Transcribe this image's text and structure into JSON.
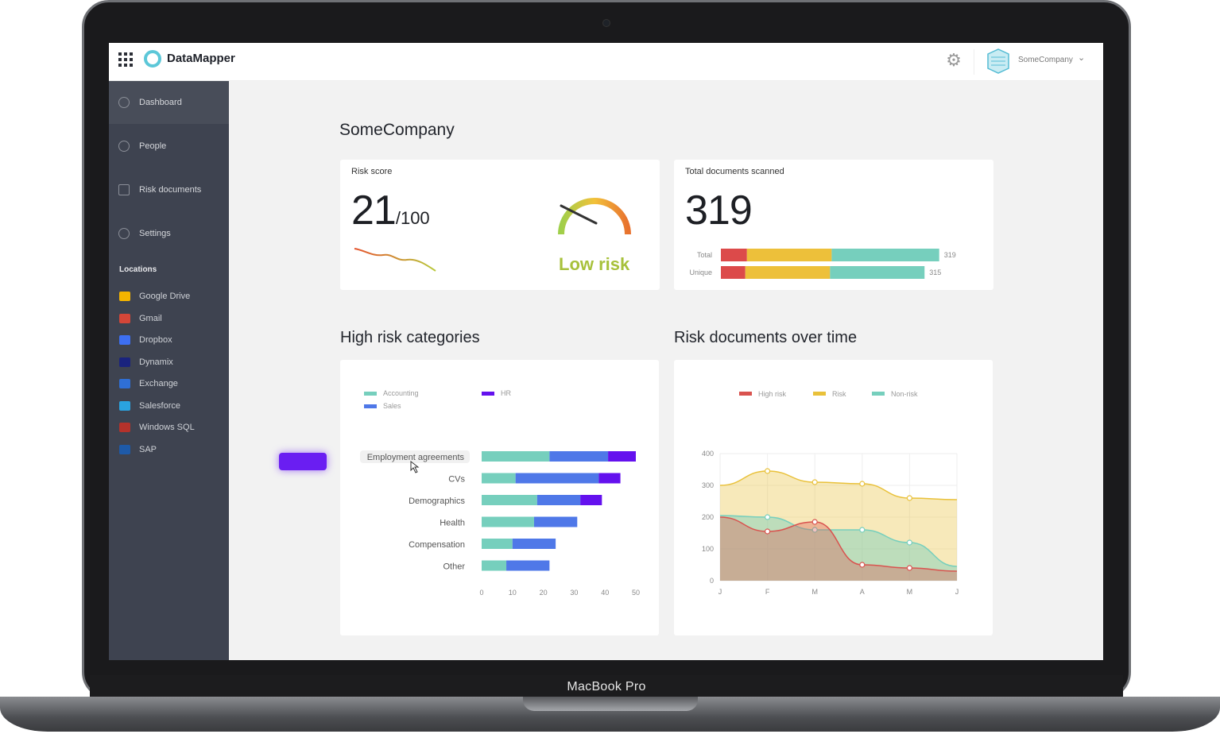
{
  "device": {
    "label": "MacBook Pro"
  },
  "app": {
    "title": "DataMapper"
  },
  "header": {
    "company": "SomeCompany",
    "settings_icon": "gear-icon"
  },
  "sidebar": {
    "items": [
      {
        "label": "Dashboard",
        "icon": "gauge-icon",
        "active": true
      },
      {
        "label": "People",
        "icon": "person-icon"
      },
      {
        "label": "Risk documents",
        "icon": "chart-icon"
      },
      {
        "label": "Settings",
        "icon": "gear-icon"
      }
    ],
    "locations_heading": "Locations",
    "locations": [
      {
        "label": "Google Drive",
        "color": "#f4b400"
      },
      {
        "label": "Gmail",
        "color": "#d44638"
      },
      {
        "label": "Dropbox",
        "color": "#3d6ff2"
      },
      {
        "label": "Dynamix",
        "color": "#1a237e"
      },
      {
        "label": "Exchange",
        "color": "#2f6fd6"
      },
      {
        "label": "Salesforce",
        "color": "#2aa3e0"
      },
      {
        "label": "Windows SQL",
        "color": "#b4322b"
      },
      {
        "label": "SAP",
        "color": "#1e5aa8"
      }
    ]
  },
  "main": {
    "title": "SomeCompany",
    "risk_score": {
      "label": "Risk score",
      "value": "21",
      "max": "/100",
      "status": "Low risk"
    },
    "docs": {
      "label": "Total documents scanned",
      "value": "319",
      "total_label": "Total",
      "total_value": "319",
      "unique_label": "Unique",
      "unique_value": "315"
    },
    "categories_title": "High risk categories",
    "time_title": "Risk documents over time"
  },
  "chart_data": [
    {
      "type": "bar",
      "orientation": "horizontal",
      "stacked": true,
      "categories": [
        "Employment agreements",
        "CVs",
        "Demographics",
        "Health",
        "Compensation",
        "Other"
      ],
      "series": [
        {
          "name": "Accounting",
          "color": "#76cfbd",
          "values": [
            22,
            11,
            18,
            17,
            10,
            8
          ]
        },
        {
          "name": "Sales",
          "color": "#4f78e8",
          "values": [
            19,
            27,
            14,
            14,
            14,
            14
          ]
        },
        {
          "name": "HR",
          "color": "#6411ee",
          "values": [
            9,
            7,
            7,
            0,
            0,
            0
          ]
        }
      ],
      "xticks": [
        0,
        10,
        20,
        30,
        40,
        50
      ],
      "xlim": [
        0,
        50
      ],
      "legend": "top-left"
    },
    {
      "type": "area",
      "categories": [
        "J",
        "F",
        "M",
        "A",
        "M",
        "J"
      ],
      "series": [
        {
          "name": "High risk",
          "color": "#d9534f",
          "values": [
            200,
            155,
            185,
            50,
            40,
            30
          ]
        },
        {
          "name": "Risk",
          "color": "#e9c13a",
          "values": [
            300,
            345,
            310,
            305,
            260,
            255
          ]
        },
        {
          "name": "Non-risk",
          "color": "#76cfbd",
          "values": [
            205,
            200,
            160,
            160,
            120,
            45
          ]
        }
      ],
      "yticks": [
        0,
        100,
        200,
        300,
        400
      ],
      "ylim": [
        0,
        400
      ],
      "grid": true,
      "legend": "top"
    },
    {
      "type": "bar",
      "orientation": "horizontal",
      "stacked": true,
      "categories": [
        "Total",
        "Unique"
      ],
      "series": [
        {
          "name": "High risk",
          "color": "#dc4a4a",
          "values": [
            16,
            15
          ]
        },
        {
          "name": "Risk",
          "color": "#edc03a",
          "values": [
            52,
            52
          ]
        },
        {
          "name": "Non-risk",
          "color": "#76cfbd",
          "values": [
            66,
            58
          ]
        }
      ]
    }
  ]
}
